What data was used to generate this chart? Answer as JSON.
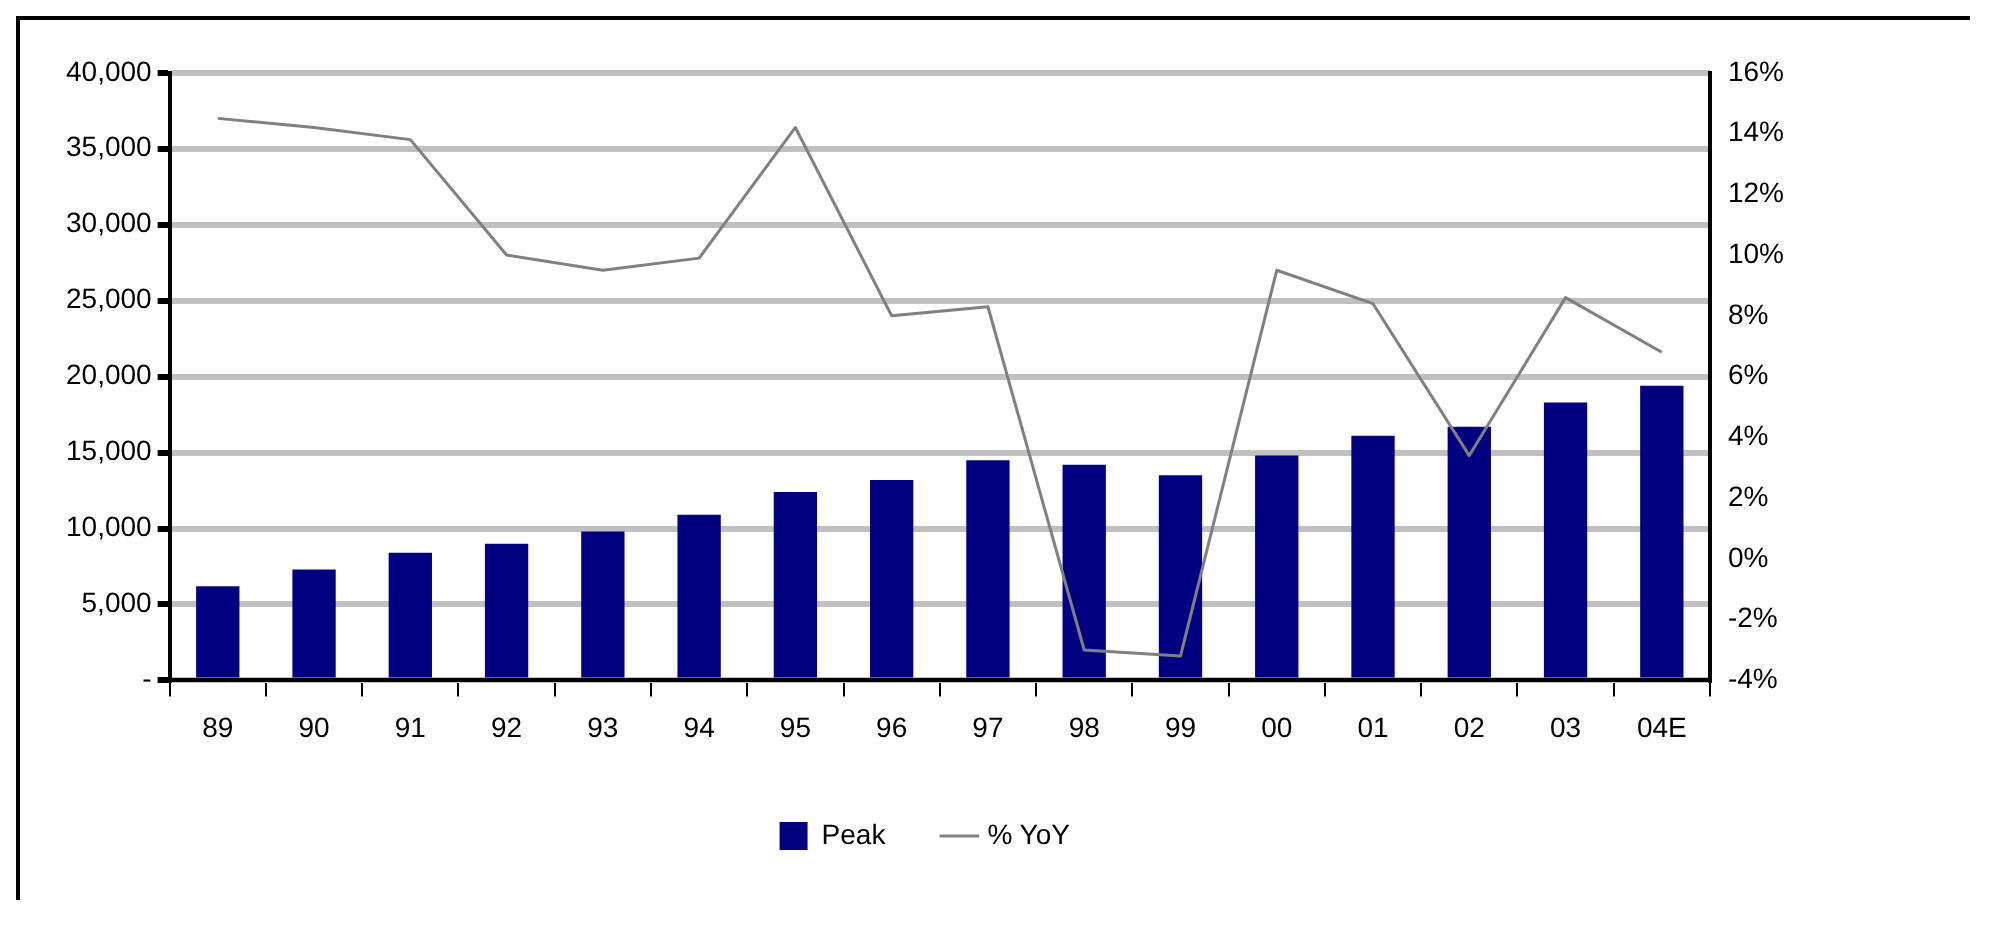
{
  "chart_data": {
    "type": "bar",
    "categories": [
      "89",
      "90",
      "91",
      "92",
      "93",
      "94",
      "95",
      "96",
      "97",
      "98",
      "99",
      "00",
      "01",
      "02",
      "03",
      "04E"
    ],
    "series": [
      {
        "name": "Peak",
        "color": "#000080",
        "values": [
          6200,
          7300,
          8400,
          9000,
          9800,
          10900,
          12400,
          13200,
          14500,
          14200,
          13500,
          14800,
          16100,
          16700,
          18300,
          19400
        ]
      },
      {
        "name": "% YoY",
        "type": "line",
        "axis": "y2",
        "color": "#808080",
        "values": [
          14.5,
          14.2,
          13.8,
          10.0,
          9.5,
          9.9,
          14.2,
          8.0,
          8.3,
          -3.0,
          -3.2,
          9.5,
          8.4,
          3.4,
          8.6,
          6.8
        ]
      }
    ],
    "ylim": [
      0,
      40000
    ],
    "yticks": [
      {
        "value": 0,
        "label": "-"
      },
      {
        "value": 5000,
        "label": "5,000"
      },
      {
        "value": 10000,
        "label": "10,000"
      },
      {
        "value": 15000,
        "label": "15,000"
      },
      {
        "value": 20000,
        "label": "20,000"
      },
      {
        "value": 25000,
        "label": "25,000"
      },
      {
        "value": 30000,
        "label": "30,000"
      },
      {
        "value": 35000,
        "label": "35,000"
      },
      {
        "value": 40000,
        "label": "40,000"
      }
    ],
    "y2lim": [
      -4,
      16
    ],
    "y2ticks": [
      {
        "value": -4,
        "label": "-4%"
      },
      {
        "value": -2,
        "label": "-2%"
      },
      {
        "value": 0,
        "label": "0%"
      },
      {
        "value": 2,
        "label": "2%"
      },
      {
        "value": 4,
        "label": "4%"
      },
      {
        "value": 6,
        "label": "6%"
      },
      {
        "value": 8,
        "label": "8%"
      },
      {
        "value": 10,
        "label": "10%"
      },
      {
        "value": 12,
        "label": "12%"
      },
      {
        "value": 14,
        "label": "14%"
      },
      {
        "value": 16,
        "label": "16%"
      }
    ],
    "grid": "y",
    "legend": "bottom",
    "marker": "none",
    "line_style": "solid"
  }
}
